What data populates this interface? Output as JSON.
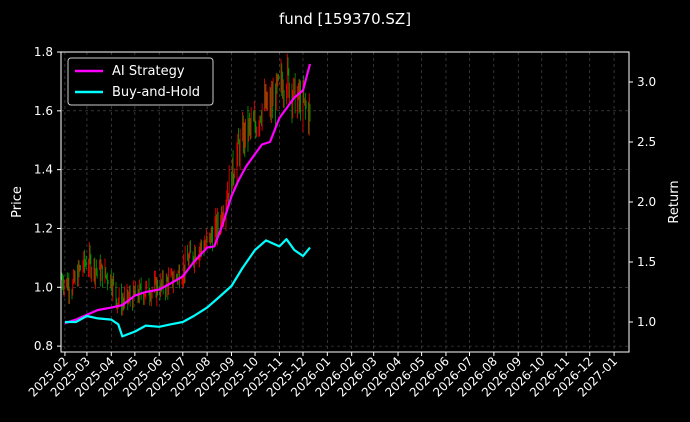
{
  "chart_data": {
    "type": "line",
    "title": "fund [159370.SZ]",
    "ylabel_left": "Price",
    "ylabel_right": "Return",
    "ylim_left": [
      0.78,
      1.8
    ],
    "ylim_right": [
      0.75,
      3.25
    ],
    "y_ticks_left": [
      "0.8",
      "1.0",
      "1.2",
      "1.4",
      "1.6",
      "1.8"
    ],
    "y_ticks_right": [
      "1.0",
      "1.5",
      "2.0",
      "2.5",
      "3.0"
    ],
    "x_range": [
      "2025-01-27",
      "2027-01-20"
    ],
    "x_ticks": [
      "2025-02",
      "2025-03",
      "2025-04",
      "2025-05",
      "2025-06",
      "2025-07",
      "2025-08",
      "2025-09",
      "2025-10",
      "2025-11",
      "2025-12",
      "2026-01",
      "2026-02",
      "2026-03",
      "2026-04",
      "2026-05",
      "2026-06",
      "2026-07",
      "2026-08",
      "2026-09",
      "2026-10",
      "2026-11",
      "2026-12",
      "2027-01"
    ],
    "grid": true,
    "legend_position": "top-left",
    "colors": {
      "ai_strategy": "#ff00ff",
      "buy_and_hold": "#00ffff",
      "candle_up": "#ff0000",
      "candle_down": "#00a000",
      "background": "#000000"
    },
    "series": [
      {
        "name": "AI Strategy",
        "axis": "right",
        "x": [
          "2025-02-01",
          "2025-02-15",
          "2025-03-01",
          "2025-03-15",
          "2025-04-01",
          "2025-04-15",
          "2025-05-01",
          "2025-05-15",
          "2025-06-01",
          "2025-06-15",
          "2025-07-01",
          "2025-07-15",
          "2025-08-01",
          "2025-08-10",
          "2025-08-20",
          "2025-09-01",
          "2025-09-10",
          "2025-09-20",
          "2025-10-01",
          "2025-10-10",
          "2025-10-20",
          "2025-11-01",
          "2025-11-10",
          "2025-11-20",
          "2025-12-01",
          "2025-12-10"
        ],
        "values": [
          0.99,
          1.02,
          1.06,
          1.1,
          1.12,
          1.14,
          1.22,
          1.25,
          1.27,
          1.32,
          1.38,
          1.5,
          1.62,
          1.63,
          1.8,
          2.05,
          2.18,
          2.3,
          2.4,
          2.48,
          2.5,
          2.7,
          2.78,
          2.87,
          2.93,
          3.15
        ]
      },
      {
        "name": "Buy-and-Hold",
        "axis": "right",
        "x": [
          "2025-02-01",
          "2025-02-15",
          "2025-03-01",
          "2025-03-15",
          "2025-04-01",
          "2025-04-10",
          "2025-04-15",
          "2025-05-01",
          "2025-05-15",
          "2025-06-01",
          "2025-06-15",
          "2025-07-01",
          "2025-07-15",
          "2025-08-01",
          "2025-08-15",
          "2025-09-01",
          "2025-09-15",
          "2025-10-01",
          "2025-10-15",
          "2025-11-01",
          "2025-11-10",
          "2025-11-20",
          "2025-12-01",
          "2025-12-10"
        ],
        "values": [
          1.0,
          1.0,
          1.05,
          1.03,
          1.02,
          0.98,
          0.88,
          0.92,
          0.97,
          0.96,
          0.98,
          1.0,
          1.05,
          1.12,
          1.2,
          1.3,
          1.45,
          1.6,
          1.68,
          1.63,
          1.69,
          1.6,
          1.55,
          1.62
        ]
      },
      {
        "name": "Price",
        "axis": "left",
        "x": [
          "2025-01-28",
          "2025-02-10",
          "2025-02-20",
          "2025-03-01",
          "2025-03-10",
          "2025-03-20",
          "2025-04-01",
          "2025-04-08",
          "2025-04-15",
          "2025-05-01",
          "2025-05-15",
          "2025-06-01",
          "2025-06-15",
          "2025-07-01",
          "2025-07-15",
          "2025-08-01",
          "2025-08-15",
          "2025-09-01",
          "2025-09-10",
          "2025-09-20",
          "2025-10-01",
          "2025-10-10",
          "2025-10-20",
          "2025-11-01",
          "2025-11-10",
          "2025-11-20",
          "2025-12-01",
          "2025-12-10"
        ],
        "values": [
          1.03,
          1.0,
          1.06,
          1.09,
          1.07,
          1.05,
          1.03,
          0.96,
          0.95,
          0.97,
          0.99,
          1.0,
          1.02,
          1.06,
          1.12,
          1.15,
          1.21,
          1.38,
          1.47,
          1.53,
          1.55,
          1.62,
          1.61,
          1.68,
          1.72,
          1.65,
          1.62,
          1.59
        ]
      }
    ]
  }
}
